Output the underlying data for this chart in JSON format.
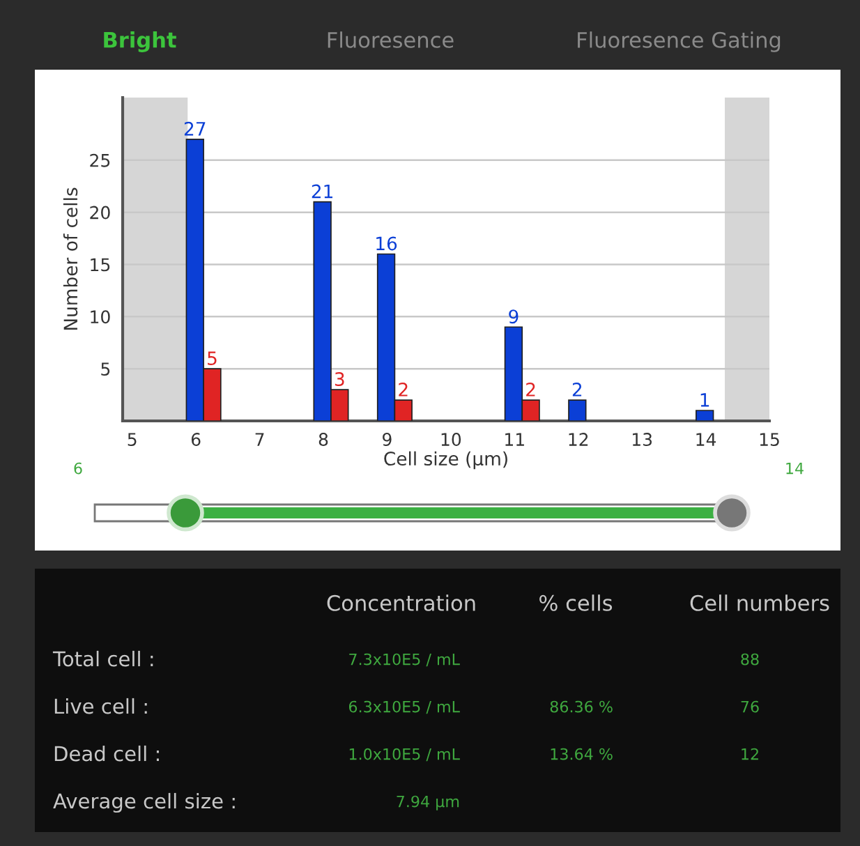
{
  "chart_data": {
    "type": "bar",
    "xlabel": "Cell size (μm)",
    "ylabel": "Number of cells",
    "series": [
      {
        "color": "#0b3fd6",
        "x": [
          6,
          8,
          9,
          11,
          12,
          14
        ],
        "values": [
          27,
          21,
          16,
          9,
          2,
          1
        ]
      },
      {
        "color": "#e02424",
        "x": [
          6,
          8,
          9,
          11
        ],
        "values": [
          5,
          3,
          2,
          2
        ]
      }
    ],
    "xlim": [
      4.85,
      15.0
    ],
    "xticks": [
      5,
      6,
      7,
      8,
      9,
      10,
      11,
      12,
      13,
      14,
      15
    ],
    "ylim": [
      0,
      31
    ],
    "yticks": [
      5,
      10,
      15,
      20,
      25
    ],
    "grid": "y",
    "data_labels": true,
    "bands": [
      {
        "axis": "x",
        "from": 4.85,
        "to": 5.87,
        "color": "#d6d6d6"
      },
      {
        "axis": "x",
        "from": 14.3,
        "to": 15.0,
        "color": "#d6d6d6"
      }
    ],
    "annotations": [
      "Bright",
      "Fluoresence",
      "Fluoresence Gating",
      "6",
      "14",
      "Concentration",
      "% cells",
      "Cell numbers",
      "Total cell :",
      "7.3x10E5 / mL",
      "88",
      "Live cell :",
      "6.3x10E5 / mL",
      "86.36 %",
      "76",
      "Dead cell :",
      "1.0x10E5 / mL",
      "13.64 %",
      "12",
      "Average cell size :",
      "7.94 μm"
    ]
  }
}
